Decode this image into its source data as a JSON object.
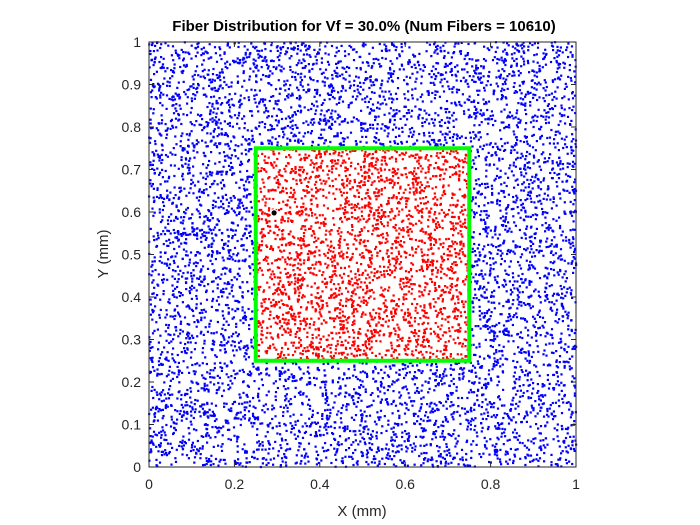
{
  "chart_data": {
    "type": "scatter",
    "title": "Fiber Distribution for Vf = 30.0% (Num Fibers = 10610)",
    "xlabel": "X (mm)",
    "ylabel": "Y (mm)",
    "xlim": [
      0,
      1
    ],
    "ylim": [
      0,
      1
    ],
    "xticks": [
      "0",
      "0.2",
      "0.4",
      "0.6",
      "0.8",
      "1"
    ],
    "yticks": [
      "0",
      "0.1",
      "0.2",
      "0.3",
      "0.4",
      "0.5",
      "0.6",
      "0.7",
      "0.8",
      "0.9",
      "1"
    ],
    "grid": false,
    "box": true,
    "num_fibers": 10610,
    "volume_fraction_percent": 30.0,
    "series": [
      {
        "role": "fibers outside region",
        "color": "#0000ff",
        "marker": "dot",
        "x_range": [
          0,
          1
        ],
        "y_range": [
          0,
          1
        ],
        "approx_count": 7950
      },
      {
        "role": "fibers inside region",
        "color": "#ff0000",
        "marker": "dot",
        "x_range": [
          0.25,
          0.75
        ],
        "y_range": [
          0.25,
          0.75
        ],
        "approx_count": 2660
      },
      {
        "role": "region boundary",
        "type": "line",
        "color": "#00ff00",
        "x": [
          0.25,
          0.75,
          0.75,
          0.25,
          0.25
        ],
        "y": [
          0.25,
          0.25,
          0.75,
          0.75,
          0.25
        ]
      },
      {
        "role": "highlighted point",
        "color": "#000000",
        "x": [
          0.293
        ],
        "y": [
          0.598
        ]
      }
    ]
  }
}
